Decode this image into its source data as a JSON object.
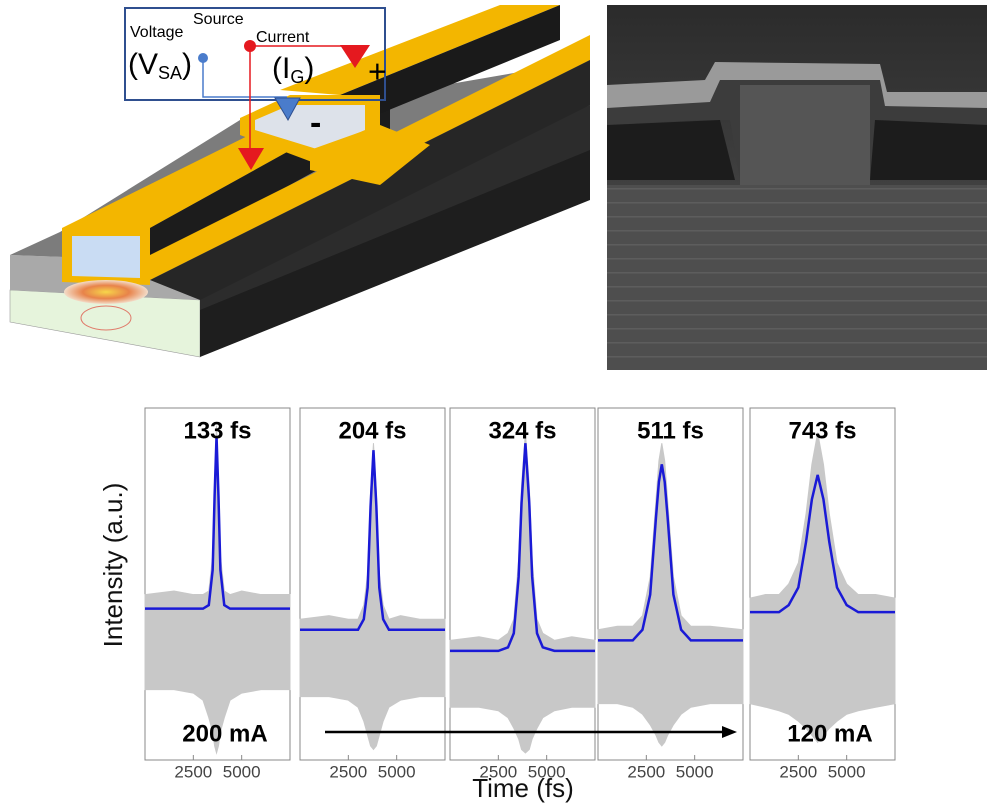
{
  "schematic": {
    "voltage": "Voltage",
    "source": "Source",
    "current": "Current",
    "vsa_open": "(V",
    "vsa_sub": "SA",
    "vsa_close": ")",
    "ig_open": "(I",
    "ig_sub": "G",
    "ig_close": ")",
    "plus": "+",
    "minus": "-"
  },
  "y_axis_label": "Intensity (a.u.)",
  "x_axis_label": "Time (fs)",
  "currents": {
    "start": "200 mA",
    "end": "120 mA"
  },
  "chart_data": [
    {
      "type": "line",
      "annotation": "133 fs",
      "xlim": [
        0,
        7500
      ],
      "xticks": [
        2500,
        5000
      ],
      "ylim": [
        0,
        1
      ],
      "x": [
        0,
        1500,
        2500,
        3000,
        3300,
        3500,
        3600,
        3700,
        3800,
        3900,
        4100,
        4400,
        5000,
        6000,
        7500
      ],
      "series": [
        {
          "color": "#c8c8c8",
          "values": [
            0.47,
            0.48,
            0.47,
            0.47,
            0.48,
            0.58,
            0.79,
            0.95,
            0.79,
            0.58,
            0.48,
            0.47,
            0.48,
            0.47,
            0.47
          ],
          "lower": [
            0.2,
            0.2,
            0.19,
            0.17,
            0.12,
            0.08,
            0.04,
            0.02,
            0.04,
            0.08,
            0.12,
            0.17,
            0.19,
            0.2,
            0.2
          ]
        },
        {
          "color": "#1a1ad6",
          "values": [
            0.43,
            0.43,
            0.43,
            0.43,
            0.44,
            0.54,
            0.75,
            0.92,
            0.75,
            0.54,
            0.44,
            0.43,
            0.43,
            0.43,
            0.43
          ]
        }
      ]
    },
    {
      "type": "line",
      "annotation": "204 fs",
      "xlim": [
        0,
        7500
      ],
      "xticks": [
        2500,
        5000
      ],
      "ylim": [
        0,
        1
      ],
      "x": [
        0,
        1500,
        2500,
        3000,
        3300,
        3500,
        3650,
        3800,
        3950,
        4100,
        4300,
        4600,
        5200,
        6200,
        7500
      ],
      "series": [
        {
          "color": "#c8c8c8",
          "values": [
            0.4,
            0.41,
            0.4,
            0.4,
            0.44,
            0.53,
            0.76,
            0.9,
            0.76,
            0.53,
            0.44,
            0.4,
            0.41,
            0.4,
            0.4
          ],
          "lower": [
            0.18,
            0.18,
            0.17,
            0.15,
            0.11,
            0.07,
            0.04,
            0.03,
            0.04,
            0.07,
            0.11,
            0.15,
            0.17,
            0.18,
            0.18
          ]
        },
        {
          "color": "#1a1ad6",
          "values": [
            0.37,
            0.37,
            0.37,
            0.37,
            0.4,
            0.49,
            0.72,
            0.88,
            0.72,
            0.49,
            0.4,
            0.37,
            0.37,
            0.37,
            0.37
          ]
        }
      ]
    },
    {
      "type": "line",
      "annotation": "324 fs",
      "xlim": [
        0,
        7500
      ],
      "xticks": [
        2500,
        5000
      ],
      "ylim": [
        0,
        1
      ],
      "x": [
        0,
        1500,
        2500,
        3000,
        3300,
        3550,
        3700,
        3900,
        4100,
        4250,
        4500,
        4800,
        5400,
        6300,
        7500
      ],
      "series": [
        {
          "color": "#c8c8c8",
          "values": [
            0.34,
            0.35,
            0.34,
            0.36,
            0.4,
            0.57,
            0.78,
            0.93,
            0.78,
            0.57,
            0.4,
            0.36,
            0.34,
            0.35,
            0.34
          ],
          "lower": [
            0.15,
            0.15,
            0.14,
            0.12,
            0.09,
            0.06,
            0.03,
            0.02,
            0.03,
            0.06,
            0.09,
            0.12,
            0.14,
            0.15,
            0.15
          ]
        },
        {
          "color": "#1a1ad6",
          "values": [
            0.31,
            0.31,
            0.31,
            0.32,
            0.36,
            0.52,
            0.73,
            0.9,
            0.73,
            0.52,
            0.36,
            0.32,
            0.31,
            0.31,
            0.31
          ]
        }
      ]
    },
    {
      "type": "line",
      "annotation": "511 fs",
      "xlim": [
        0,
        7500
      ],
      "xticks": [
        2500,
        5000
      ],
      "ylim": [
        0,
        1
      ],
      "x": [
        0,
        1000,
        1800,
        2300,
        2700,
        3000,
        3150,
        3300,
        3450,
        3600,
        3900,
        4300,
        4800,
        5800,
        7500
      ],
      "series": [
        {
          "color": "#c8c8c8",
          "values": [
            0.37,
            0.38,
            0.38,
            0.41,
            0.52,
            0.74,
            0.85,
            0.9,
            0.85,
            0.74,
            0.52,
            0.41,
            0.38,
            0.38,
            0.37
          ],
          "lower": [
            0.16,
            0.16,
            0.15,
            0.13,
            0.1,
            0.07,
            0.05,
            0.04,
            0.05,
            0.07,
            0.1,
            0.13,
            0.15,
            0.16,
            0.16
          ]
        },
        {
          "color": "#1a1ad6",
          "values": [
            0.34,
            0.34,
            0.34,
            0.37,
            0.47,
            0.69,
            0.79,
            0.84,
            0.79,
            0.69,
            0.47,
            0.37,
            0.34,
            0.34,
            0.34
          ]
        }
      ]
    },
    {
      "type": "line",
      "annotation": "743 fs",
      "xlim": [
        0,
        7500
      ],
      "xticks": [
        2500,
        5000
      ],
      "ylim": [
        0,
        1
      ],
      "x": [
        0,
        800,
        1500,
        2000,
        2500,
        2900,
        3200,
        3500,
        3800,
        4100,
        4500,
        5000,
        5600,
        6500,
        7500
      ],
      "series": [
        {
          "color": "#c8c8c8",
          "values": [
            0.46,
            0.47,
            0.47,
            0.5,
            0.56,
            0.7,
            0.84,
            0.93,
            0.84,
            0.7,
            0.56,
            0.5,
            0.47,
            0.47,
            0.46
          ],
          "lower": [
            0.16,
            0.15,
            0.14,
            0.13,
            0.11,
            0.09,
            0.07,
            0.05,
            0.07,
            0.09,
            0.11,
            0.13,
            0.14,
            0.15,
            0.16
          ]
        },
        {
          "color": "#1a1ad6",
          "values": [
            0.42,
            0.42,
            0.42,
            0.44,
            0.49,
            0.62,
            0.74,
            0.81,
            0.74,
            0.62,
            0.49,
            0.44,
            0.42,
            0.42,
            0.42
          ]
        }
      ]
    }
  ]
}
